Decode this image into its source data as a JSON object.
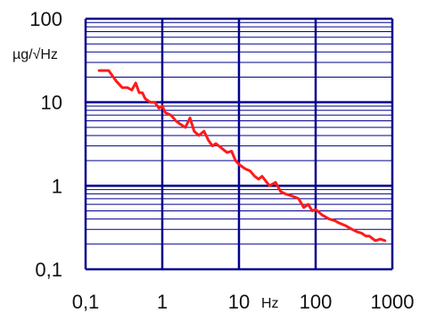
{
  "chart_data": {
    "type": "line",
    "x_scale": "log",
    "y_scale": "log",
    "xlim": [
      0.1,
      1000
    ],
    "ylim": [
      0.1,
      100
    ],
    "x_tick_labels": [
      "0,1",
      "1",
      "10",
      "100",
      "1000"
    ],
    "y_tick_labels": [
      "100",
      "10",
      "1",
      "0,1"
    ],
    "xlabel": "Hz",
    "ylabel": "µg/√Hz",
    "grid": true,
    "colors": {
      "line": "#ff1a1a",
      "grid": "#00008b",
      "axis_text": "#111111"
    },
    "series": [
      {
        "x": [
          0.15,
          0.2,
          0.25,
          0.3,
          0.35,
          0.4,
          0.45,
          0.5,
          0.55,
          0.6,
          0.7,
          0.8,
          0.9,
          1.0,
          1.1,
          1.3,
          1.5,
          1.7,
          2.0,
          2.3,
          2.6,
          3.0,
          3.5,
          4.0,
          4.5,
          5.0,
          6.0,
          7.0,
          8.0,
          9.0,
          10,
          12,
          14,
          16,
          18,
          20,
          25,
          30,
          35,
          40,
          50,
          60,
          70,
          80,
          90,
          100,
          120,
          150,
          180,
          200,
          250,
          300,
          350,
          400,
          450,
          500,
          600,
          700,
          800
        ],
        "y": [
          24,
          24,
          18,
          15,
          15,
          14,
          17,
          13,
          13,
          11,
          10,
          10,
          8.5,
          9.0,
          7.5,
          7.0,
          6.0,
          5.5,
          5.0,
          6.5,
          4.5,
          4.0,
          4.5,
          3.5,
          3.0,
          3.2,
          2.8,
          2.5,
          2.6,
          2.0,
          1.8,
          1.6,
          1.5,
          1.3,
          1.2,
          1.3,
          1.0,
          1.1,
          0.85,
          0.8,
          0.75,
          0.7,
          0.55,
          0.6,
          0.5,
          0.52,
          0.45,
          0.4,
          0.38,
          0.36,
          0.33,
          0.3,
          0.28,
          0.27,
          0.25,
          0.25,
          0.22,
          0.23,
          0.22
        ]
      }
    ]
  }
}
